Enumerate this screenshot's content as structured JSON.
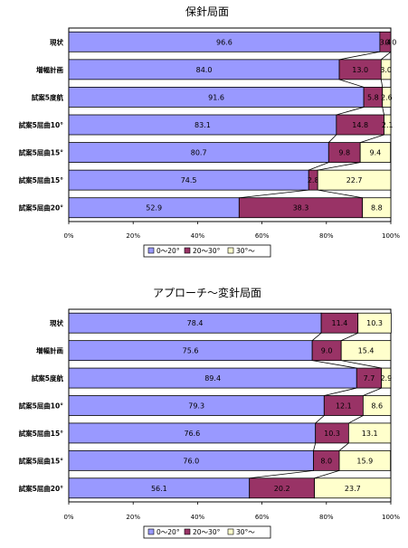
{
  "colors": {
    "s1": "#9999ff",
    "s2": "#993366",
    "s3": "#ffffcc"
  },
  "chart_data": [
    {
      "type": "bar",
      "orientation": "horizontal-stacked-100",
      "title": "保針局面",
      "categories": [
        "現状",
        "増幅計画",
        "試案5度航",
        "試案5屈曲10°",
        "試案5屈曲15°",
        "試案5屈曲15°",
        "試案5屈曲20°"
      ],
      "series": [
        {
          "name": "0～20°",
          "values": [
            96.6,
            84.0,
            91.6,
            83.1,
            80.7,
            74.5,
            52.9
          ],
          "labels": [
            "96.6",
            "84.0",
            "91.6",
            "83.1",
            "80.7",
            "74.5",
            "52.9"
          ]
        },
        {
          "name": "20～30°",
          "values": [
            3.4,
            13.0,
            5.8,
            14.8,
            9.8,
            2.8,
            38.3
          ],
          "labels": [
            "3.4",
            "13.0",
            "5.8",
            "14.8",
            "9.8",
            "2.8",
            "38.3"
          ]
        },
        {
          "name": "30°～",
          "values": [
            0.0,
            3.0,
            2.6,
            2.1,
            9.4,
            22.7,
            8.8
          ],
          "labels": [
            "0.0",
            "3.0",
            "2.6",
            "2.1",
            "9.4",
            "22.7",
            "8.8"
          ]
        }
      ],
      "xticks": [
        "0%",
        "20%",
        "40%",
        "60%",
        "80%",
        "100%"
      ],
      "xlim": [
        0,
        100
      ],
      "legend": "bottom"
    },
    {
      "type": "bar",
      "orientation": "horizontal-stacked-100",
      "title": "アプローチ～変針局面",
      "categories": [
        "現状",
        "増幅計画",
        "試案5度航",
        "試案5屈曲10°",
        "試案5屈曲15°",
        "試案5屈曲15°",
        "試案5屈曲20°"
      ],
      "series": [
        {
          "name": "0～20°",
          "values": [
            78.4,
            75.6,
            89.4,
            79.3,
            76.6,
            76.0,
            56.1
          ],
          "labels": [
            "78.4",
            "75.6",
            "89.4",
            "79.3",
            "76.6",
            "76.0",
            "56.1"
          ]
        },
        {
          "name": "20～30°",
          "values": [
            11.4,
            9.0,
            7.7,
            12.1,
            10.3,
            8.0,
            20.2
          ],
          "labels": [
            "11.4",
            "9.0",
            "7.7",
            "12.1",
            "10.3",
            "8.0",
            "20.2"
          ]
        },
        {
          "name": "30°～",
          "values": [
            10.3,
            15.4,
            2.9,
            8.6,
            13.1,
            15.9,
            23.7
          ],
          "labels": [
            "10.3",
            "15.4",
            "2.9",
            "8.6",
            "13.1",
            "15.9",
            "23.7"
          ]
        }
      ],
      "xticks": [
        "0%",
        "20%",
        "40%",
        "60%",
        "80%",
        "100%"
      ],
      "xlim": [
        0,
        100
      ],
      "legend": "bottom"
    }
  ]
}
